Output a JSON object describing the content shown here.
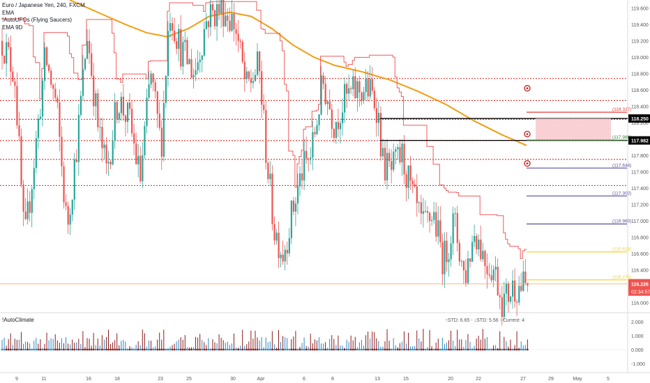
{
  "header": {
    "symbol_line": "Euro / Japanese Yen, 240, FXCM",
    "indicator_1": "EMA",
    "indicator_2": "!AutoUFOs (Flying Saucers)",
    "indicator_3": "EMA 9D"
  },
  "colors": {
    "candle_up": "#26a69a",
    "candle_down": "#ef5350",
    "ema_line": "#f39c12",
    "trail_line": "#f0595a",
    "level_red": "#e53935",
    "level_black": "#000000",
    "zone_fill": "#f8c9cc",
    "proj_purple": "#5e4d9b",
    "proj_yellow": "#f3d42f",
    "hist_up": "#2e86c1",
    "hist_down": "#8b1a1a"
  },
  "chart_data": {
    "type": "candlestick",
    "title": "Euro / Japanese Yen, 240, FXCM",
    "y_axis": {
      "min": 115.9,
      "max": 119.7,
      "ticks": [
        "119.600",
        "119.400",
        "119.200",
        "119.000",
        "118.800",
        "118.600",
        "118.400",
        "118.200",
        "118.000",
        "117.800",
        "117.600",
        "117.400",
        "117.200",
        "117.000",
        "116.800",
        "116.600",
        "116.400",
        "116.200",
        "116.000"
      ]
    },
    "x_axis": {
      "ticks": [
        "9",
        "11",
        "16",
        "18",
        "23",
        "25",
        "30",
        "Apr",
        "6",
        "8",
        "13",
        "15",
        "20",
        "22",
        "27",
        "29",
        "May",
        "5"
      ]
    },
    "horizontal_levels": [
      {
        "price": 118.74,
        "style": "dotted",
        "color": "red"
      },
      {
        "price": 118.47,
        "style": "dotted",
        "color": "red"
      },
      {
        "price": 118.24,
        "style": "dotted",
        "color": "red"
      },
      {
        "price": 117.98,
        "style": "dotted",
        "color": "red"
      },
      {
        "price": 117.75,
        "style": "dotted",
        "color": "red"
      },
      {
        "price": 117.43,
        "style": "dotted",
        "color": "red"
      }
    ],
    "key_lines": [
      {
        "price": 118.25,
        "label": "118.250",
        "color": "black"
      },
      {
        "price": 117.982,
        "label": "117.982",
        "color": "black"
      }
    ],
    "projection_levels": [
      {
        "price": 118.327,
        "label": "118.327",
        "color": "red"
      },
      {
        "price": 117.986,
        "label": "117.986",
        "color": "green"
      },
      {
        "price": 117.644,
        "label": "117.644",
        "color": "purple"
      },
      {
        "price": 117.302,
        "label": "117.302",
        "color": "purple"
      },
      {
        "price": 116.96,
        "label": "116.960",
        "color": "purple"
      },
      {
        "price": 116.618,
        "label": "116.618",
        "color": "yellow"
      },
      {
        "price": 116.276,
        "label": "116.276",
        "color": "yellow"
      }
    ],
    "current_price": {
      "value": 116.226,
      "label": "116.226",
      "countdown": "02:34:57"
    },
    "indicator": {
      "title": "!AutoClimate",
      "stats": "↑STD: 6.65 - ↓STD: 5.56 - Current: 4",
      "y_ticks": [
        "2.000",
        "1.000",
        "0.000",
        "-1.000"
      ],
      "y_min": -1.5,
      "y_max": 2.5
    },
    "grid": false,
    "legend_position": "top-left"
  }
}
